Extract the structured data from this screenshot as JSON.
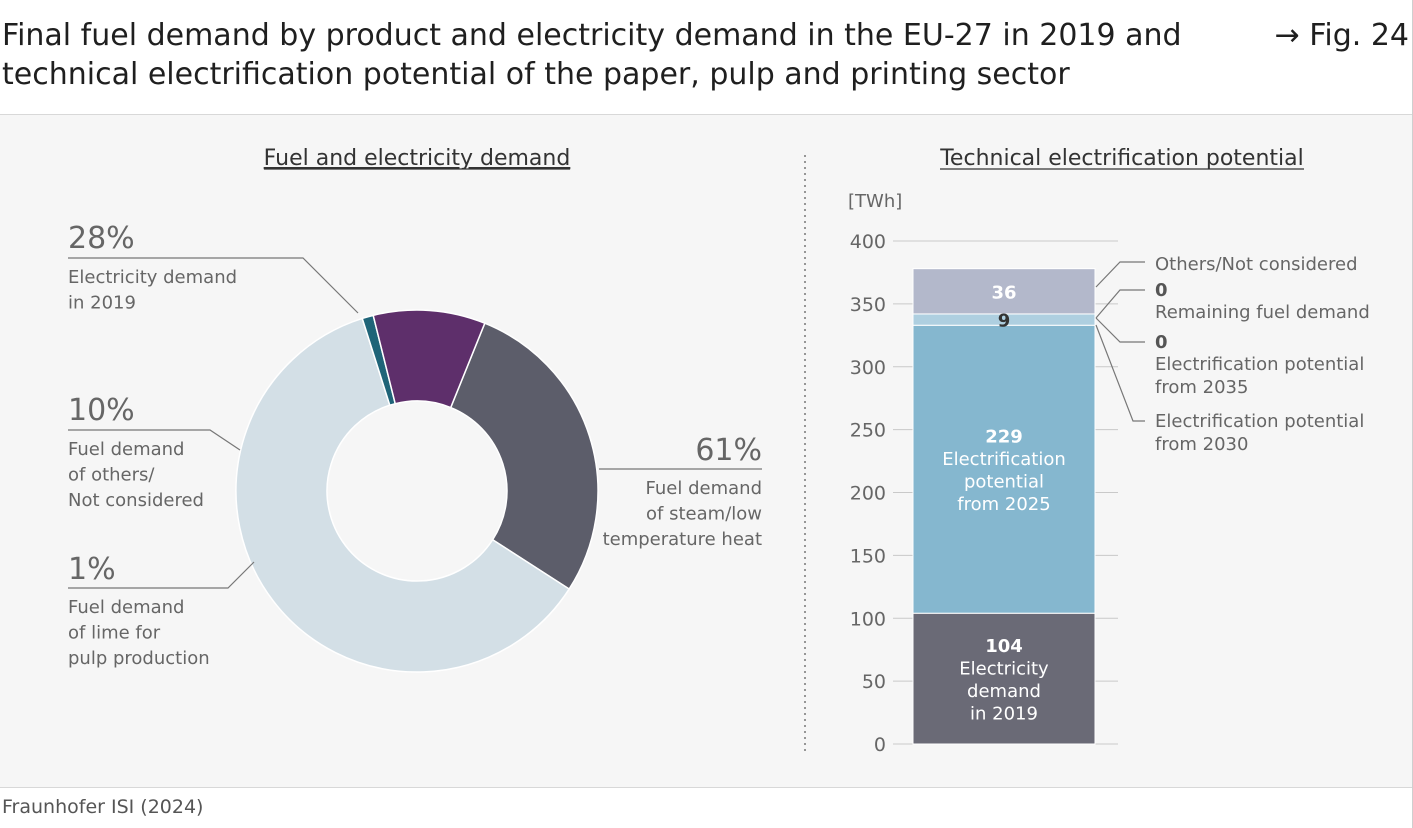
{
  "header": {
    "title_line1": "Final fuel demand by product and electricity demand in the EU-27 in 2019 and",
    "title_line2": "technical electrification potential of the paper, pulp and printing sector",
    "fig_ref": "→ Fig. 24"
  },
  "source": "Fraunhofer ISI (2024)",
  "colors": {
    "electricity": "#5c5d6a",
    "others": "#5e2f6b",
    "lime": "#1f6478",
    "steam": "#d3dfe6",
    "bar_electricity": "#6a6a76",
    "bar_pot2025": "#85b7cf",
    "bar_pot2030": "#aecfe0",
    "bar_pot2035": "#c8dee9",
    "bar_remaining": "#dde8ee",
    "bar_others": "#b3b8cb",
    "axis": "#c9c9c9",
    "label": "#666666"
  },
  "chart_data": [
    {
      "type": "pie",
      "title": "Fuel and electricity demand",
      "slices": [
        {
          "pct": "28%",
          "value": 28,
          "label_lines": [
            "Electricity demand",
            "in 2019"
          ],
          "color_key": "electricity"
        },
        {
          "pct": "61%",
          "value": 61,
          "label_lines": [
            "Fuel demand",
            "of steam/low",
            "temperature heat"
          ],
          "color_key": "steam"
        },
        {
          "pct": "1%",
          "value": 1,
          "label_lines": [
            "Fuel demand",
            "of lime for",
            "pulp production"
          ],
          "color_key": "lime"
        },
        {
          "pct": "10%",
          "value": 10,
          "label_lines": [
            "Fuel demand",
            "of others/",
            "Not considered"
          ],
          "color_key": "others"
        }
      ]
    },
    {
      "type": "bar",
      "stacked": true,
      "title": "Technical electrification potential",
      "ylabel": "[TWh]",
      "ylim": [
        0,
        400
      ],
      "yticks": [
        0,
        50,
        100,
        150,
        200,
        250,
        300,
        350,
        400
      ],
      "segments": [
        {
          "value": 104,
          "display": "104",
          "inner_lines": [
            "Electricity",
            "demand",
            "in 2019"
          ],
          "color_key": "bar_electricity",
          "text_color": "#ffffff"
        },
        {
          "value": 229,
          "display": "229",
          "inner_lines": [
            "Electrification",
            "potential",
            "from 2025"
          ],
          "color_key": "bar_pot2025",
          "text_color": "#ffffff"
        },
        {
          "value": 9,
          "display": "9",
          "inner_lines": [],
          "color_key": "bar_pot2030",
          "text_color": "#333333"
        },
        {
          "value": 0,
          "display": "0",
          "inner_lines": [],
          "color_key": "bar_pot2035",
          "text_color": "#333333"
        },
        {
          "value": 0,
          "display": "0",
          "inner_lines": [],
          "color_key": "bar_remaining",
          "text_color": "#333333"
        },
        {
          "value": 36,
          "display": "36",
          "inner_lines": [],
          "color_key": "bar_others",
          "text_color": "#ffffff"
        }
      ],
      "legend": [
        {
          "value": "",
          "lines": [
            "Others/Not considered"
          ]
        },
        {
          "value": "0",
          "lines": [
            "Remaining fuel demand"
          ]
        },
        {
          "value": "0",
          "lines": [
            "Electrification potential",
            "from 2035"
          ]
        },
        {
          "value": "",
          "lines": [
            "Electrification potential",
            "from 2030"
          ]
        }
      ]
    }
  ]
}
